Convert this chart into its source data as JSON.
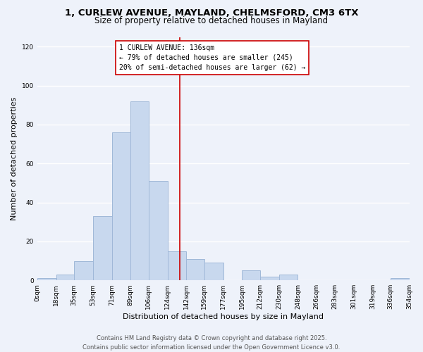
{
  "title_line1": "1, CURLEW AVENUE, MAYLAND, CHELMSFORD, CM3 6TX",
  "title_line2": "Size of property relative to detached houses in Mayland",
  "xlabel": "Distribution of detached houses by size in Mayland",
  "ylabel": "Number of detached properties",
  "bar_color": "#c8d8ee",
  "bar_edge_color": "#a0b8d8",
  "bin_edges": [
    0,
    18,
    35,
    53,
    71,
    89,
    106,
    124,
    142,
    159,
    177,
    195,
    212,
    230,
    248,
    266,
    283,
    301,
    319,
    336,
    354
  ],
  "bar_heights": [
    1,
    3,
    10,
    33,
    76,
    92,
    51,
    15,
    11,
    9,
    0,
    5,
    2,
    3,
    0,
    0,
    0,
    0,
    0,
    1
  ],
  "tick_labels": [
    "0sqm",
    "18sqm",
    "35sqm",
    "53sqm",
    "71sqm",
    "89sqm",
    "106sqm",
    "124sqm",
    "142sqm",
    "159sqm",
    "177sqm",
    "195sqm",
    "212sqm",
    "230sqm",
    "248sqm",
    "266sqm",
    "283sqm",
    "301sqm",
    "319sqm",
    "336sqm",
    "354sqm"
  ],
  "vline_x": 136,
  "vline_color": "#cc0000",
  "annotation_title": "1 CURLEW AVENUE: 136sqm",
  "annotation_line1": "← 79% of detached houses are smaller (245)",
  "annotation_line2": "20% of semi-detached houses are larger (62) →",
  "ylim": [
    0,
    125
  ],
  "footer_line1": "Contains HM Land Registry data © Crown copyright and database right 2025.",
  "footer_line2": "Contains public sector information licensed under the Open Government Licence v3.0.",
  "background_color": "#eef2fa",
  "grid_color": "#ffffff",
  "title_fontsize": 9.5,
  "subtitle_fontsize": 8.5,
  "axis_label_fontsize": 8,
  "tick_fontsize": 6.5,
  "annotation_fontsize": 7,
  "footer_fontsize": 6
}
